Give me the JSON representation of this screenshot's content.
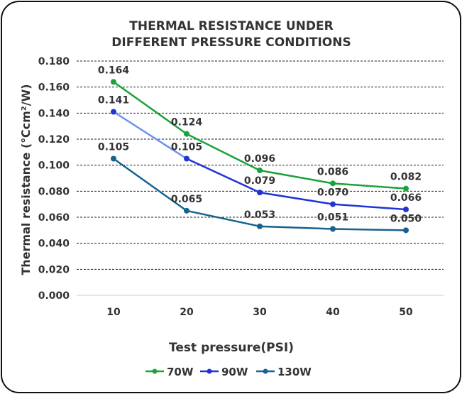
{
  "chart_data": {
    "type": "line",
    "title": [
      "THERMAL RESISTANCE UNDER",
      "DIFFERENT PRESSURE CONDITIONS"
    ],
    "xlabel": "Test pressure(PSI)",
    "ylabel": "Thermal resistance (℃cm²/W)",
    "categories": [
      "10",
      "20",
      "30",
      "40",
      "50"
    ],
    "ylim": [
      0,
      0.18
    ],
    "yticks": [
      "0.000",
      "0.020",
      "0.040",
      "0.060",
      "0.080",
      "0.100",
      "0.120",
      "0.140",
      "0.160",
      "0.180"
    ],
    "grid": true,
    "legend_position": "bottom",
    "series": [
      {
        "name": "70W",
        "color": "#1aa33a",
        "values": [
          0.164,
          0.124,
          0.096,
          0.086,
          0.082
        ],
        "labels": [
          "0.164",
          "0.124",
          "0.096",
          "0.086",
          "0.082"
        ]
      },
      {
        "name": "90W",
        "color": "#1f33d8",
        "values": [
          0.141,
          0.105,
          0.079,
          0.07,
          0.066
        ],
        "labels": [
          "0.141",
          "0.105",
          "0.079",
          "0.070",
          "0.066"
        ]
      },
      {
        "name": "130W",
        "color": "#17628f",
        "values": [
          0.105,
          0.065,
          0.053,
          0.051,
          0.05
        ],
        "labels": [
          "0.105",
          "0.065",
          "0.053",
          "0.051",
          "0.050"
        ]
      }
    ]
  }
}
